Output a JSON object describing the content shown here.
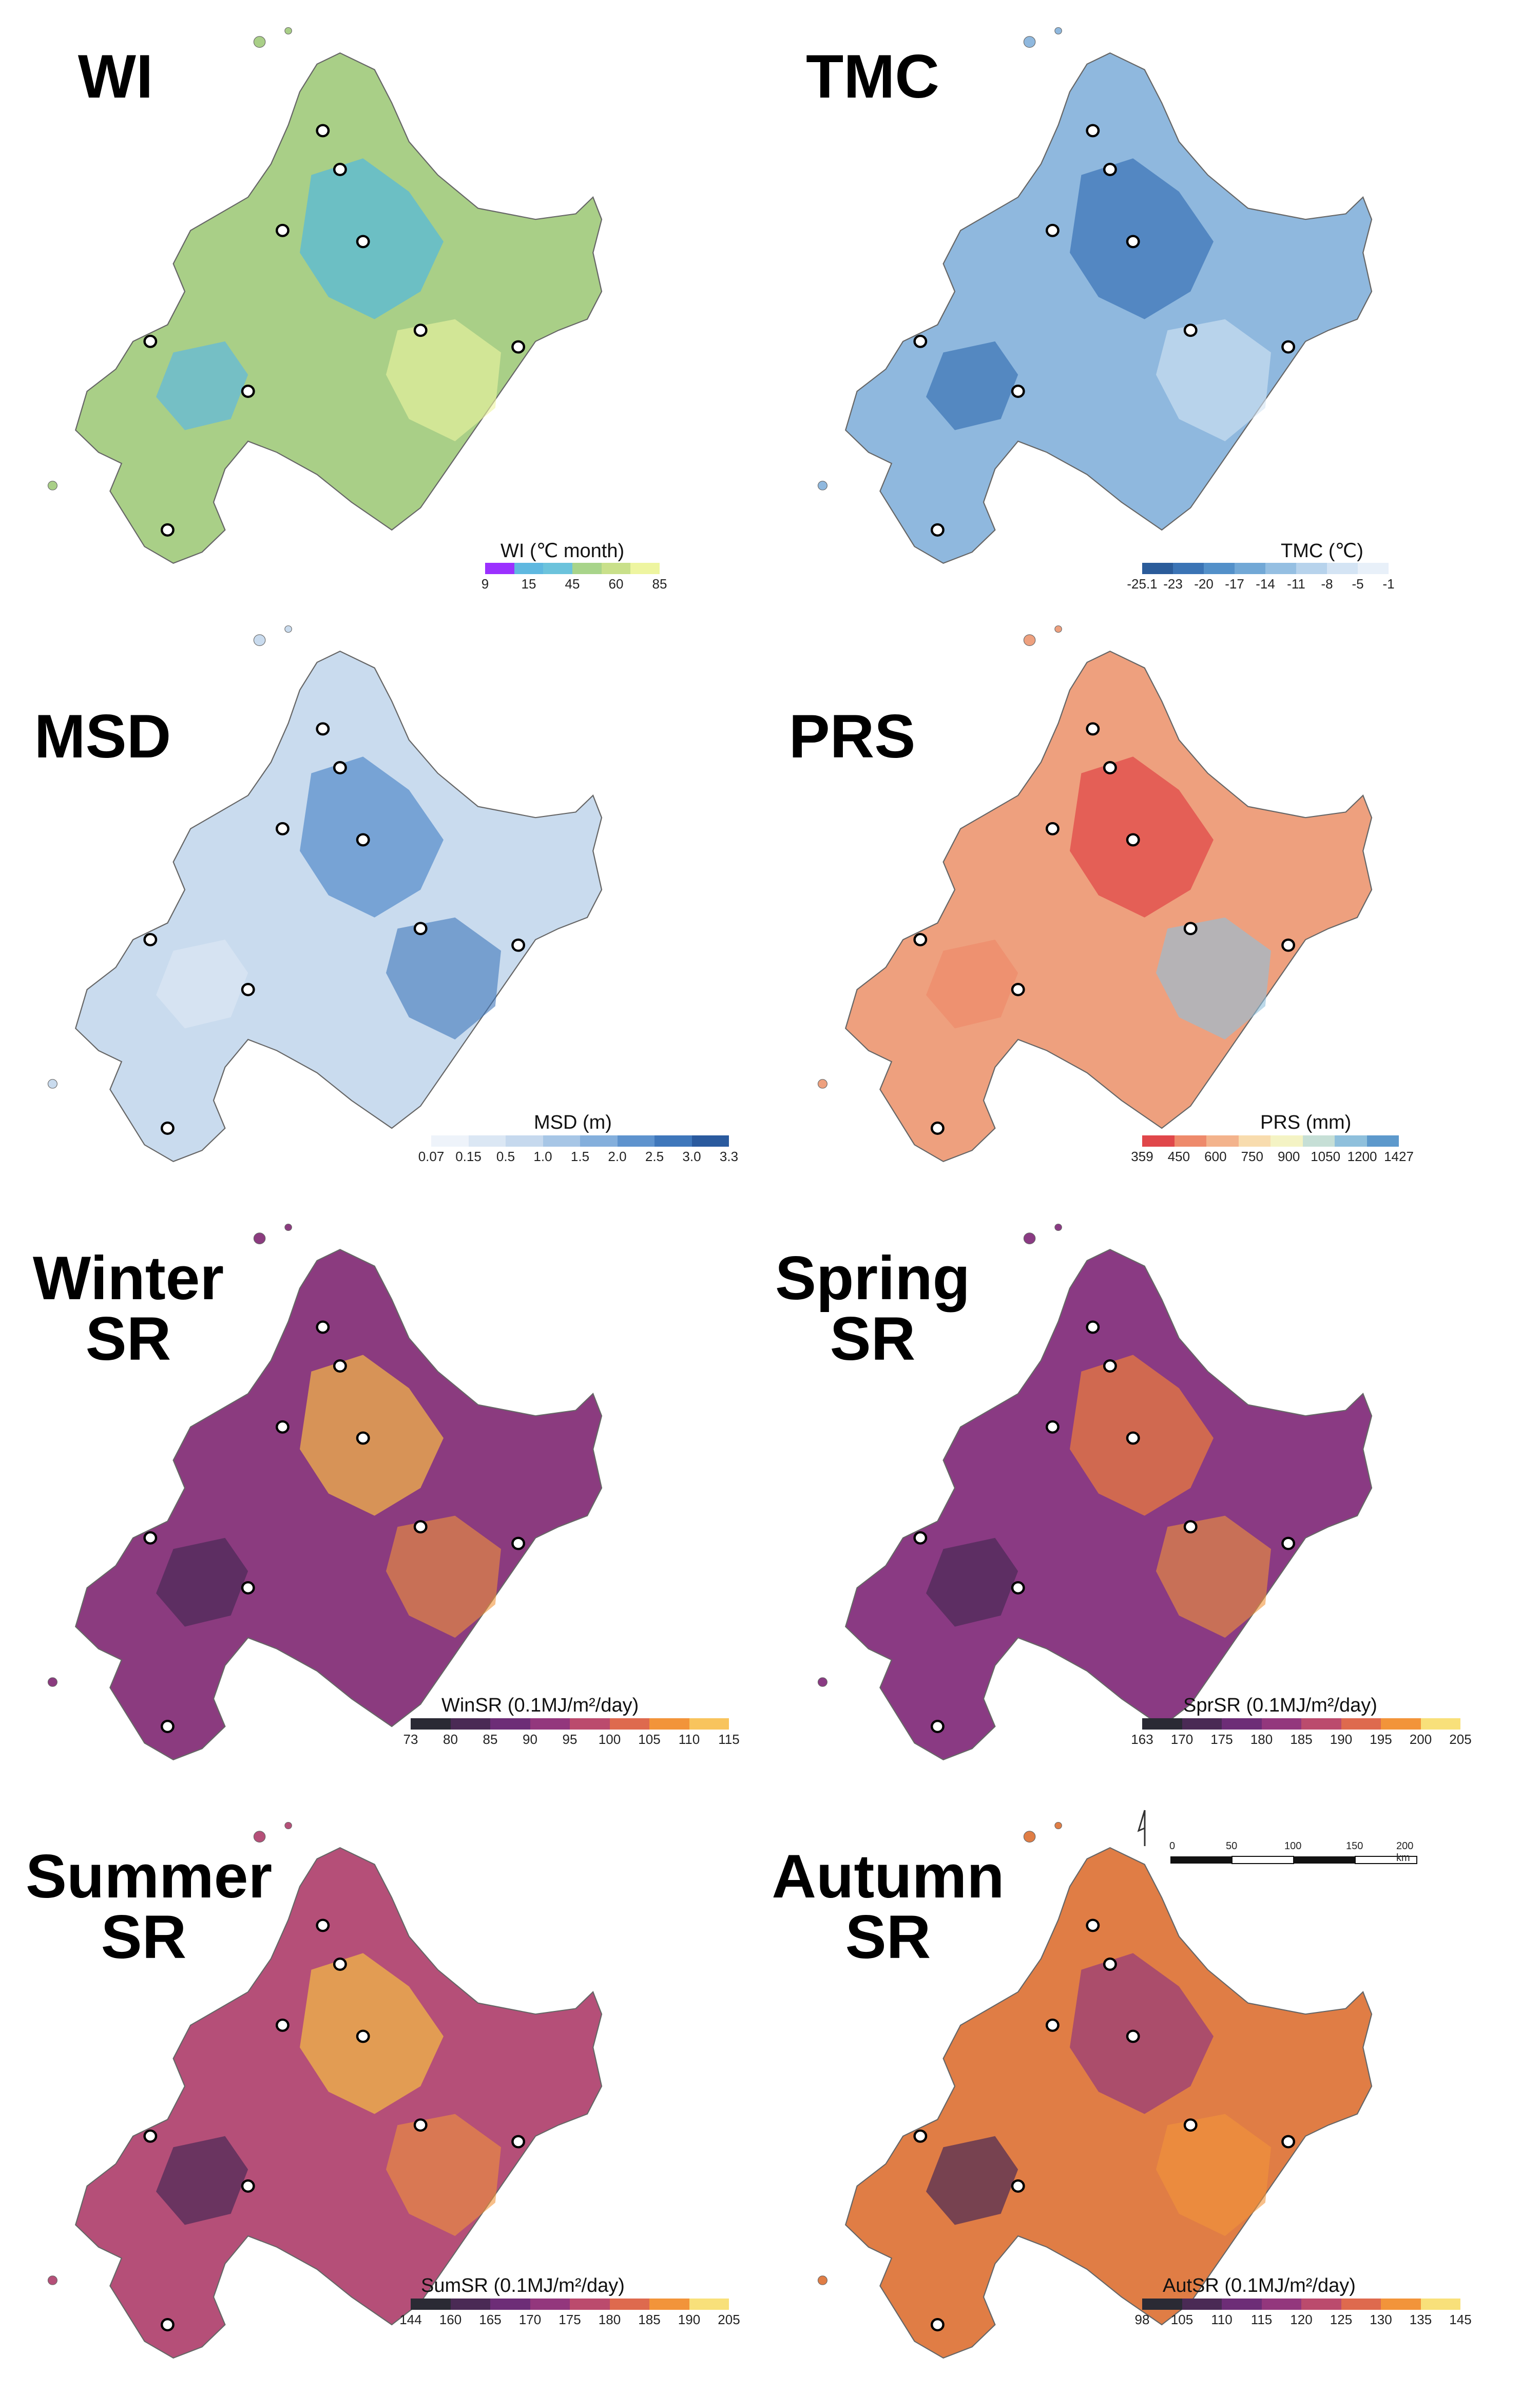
{
  "panels": [
    {
      "id": "wi",
      "title": "WI",
      "legend_title": "WI (℃ month)",
      "ticks": [
        "9",
        "15",
        "45",
        "60",
        "85"
      ],
      "colors": [
        "#9b30ff",
        "#5fb8e0",
        "#6cc3dc",
        "#a8d48a",
        "#c9e08a",
        "#eef5a0"
      ],
      "fill": "#a9cf87",
      "accent": "#58b9d8"
    },
    {
      "id": "tmc",
      "title": "TMC",
      "legend_title": "TMC (℃)",
      "ticks": [
        "-25.1",
        "-23",
        "-20",
        "-17",
        "-14",
        "-11",
        "-8",
        "-5",
        "-1"
      ],
      "colors": [
        "#2b5c9a",
        "#3b74b5",
        "#5390c9",
        "#72a8d6",
        "#95bfe2",
        "#b7d3ec",
        "#d4e4f4",
        "#e8f0f9"
      ],
      "fill": "#8fb8de",
      "accent": "#3f77b8"
    },
    {
      "id": "msd",
      "title": "MSD",
      "legend_title": "MSD (m)",
      "ticks": [
        "0.07",
        "0.15",
        "0.5",
        "1.0",
        "1.5",
        "2.0",
        "2.5",
        "3.0",
        "3.3"
      ],
      "colors": [
        "#eef3fa",
        "#dbe7f4",
        "#c6d9ee",
        "#a7c6e6",
        "#84afdc",
        "#5e93ce",
        "#3f77bb",
        "#2a5a9e"
      ],
      "fill": "#c9dbee",
      "accent": "#5b90cc"
    },
    {
      "id": "prs",
      "title": "PRS",
      "legend_title": "PRS (mm)",
      "ticks": [
        "359",
        "450",
        "600",
        "750",
        "900",
        "1050",
        "1200",
        "1427"
      ],
      "colors": [
        "#e0474a",
        "#ee8a6b",
        "#f3b38c",
        "#f8dcae",
        "#f4f3c4",
        "#c6dfd6",
        "#8fc0dc",
        "#5d99cc"
      ],
      "fill": "#eea07e",
      "accent": "#e04a4a"
    },
    {
      "id": "winsr",
      "title": "Winter\nSR",
      "legend_title": "WinSR (0.1MJ/m²/day)",
      "ticks": [
        "73",
        "80",
        "85",
        "90",
        "95",
        "100",
        "105",
        "110",
        "115"
      ],
      "colors": [
        "#2a2a34",
        "#4a2a55",
        "#6d2d77",
        "#93377d",
        "#bb4b6d",
        "#de6a4e",
        "#f2943a",
        "#f8c45d"
      ],
      "fill": "#8b3b7f",
      "accent": "#f0b24a"
    },
    {
      "id": "sprsr",
      "title": "Spring\nSR",
      "legend_title": "SprSR (0.1MJ/m²/day)",
      "ticks": [
        "163",
        "170",
        "175",
        "180",
        "185",
        "190",
        "195",
        "200",
        "205"
      ],
      "colors": [
        "#2a2a34",
        "#4a2a55",
        "#6d2d77",
        "#93377d",
        "#bb4b6d",
        "#de6a4e",
        "#f2943a",
        "#f8e07a"
      ],
      "fill": "#8a3a83",
      "accent": "#e7793f"
    },
    {
      "id": "sumsr",
      "title": "Summer\nSR",
      "legend_title": "SumSR (0.1MJ/m²/day)",
      "ticks": [
        "144",
        "160",
        "165",
        "170",
        "175",
        "180",
        "185",
        "190",
        "205"
      ],
      "colors": [
        "#2a2a34",
        "#4a2a55",
        "#6d2d77",
        "#93377d",
        "#bb4b6d",
        "#de6a4e",
        "#f2943a",
        "#f8e07a"
      ],
      "fill": "#b54f78",
      "accent": "#f1b547"
    },
    {
      "id": "autsr",
      "title": "Autumn\nSR",
      "legend_title": "AutSR (0.1MJ/m²/day)",
      "ticks": [
        "98",
        "105",
        "110",
        "115",
        "120",
        "125",
        "130",
        "135",
        "145"
      ],
      "colors": [
        "#2a2a34",
        "#4a2a55",
        "#6d2d77",
        "#93377d",
        "#bb4b6d",
        "#de6a4e",
        "#f2943a",
        "#f8e07a"
      ],
      "fill": "#e07d45",
      "accent": "#9a3e78"
    }
  ],
  "scalebar": {
    "labels": [
      "0",
      "50",
      "100",
      "150",
      "200 km"
    ],
    "north_symbol": "4"
  }
}
